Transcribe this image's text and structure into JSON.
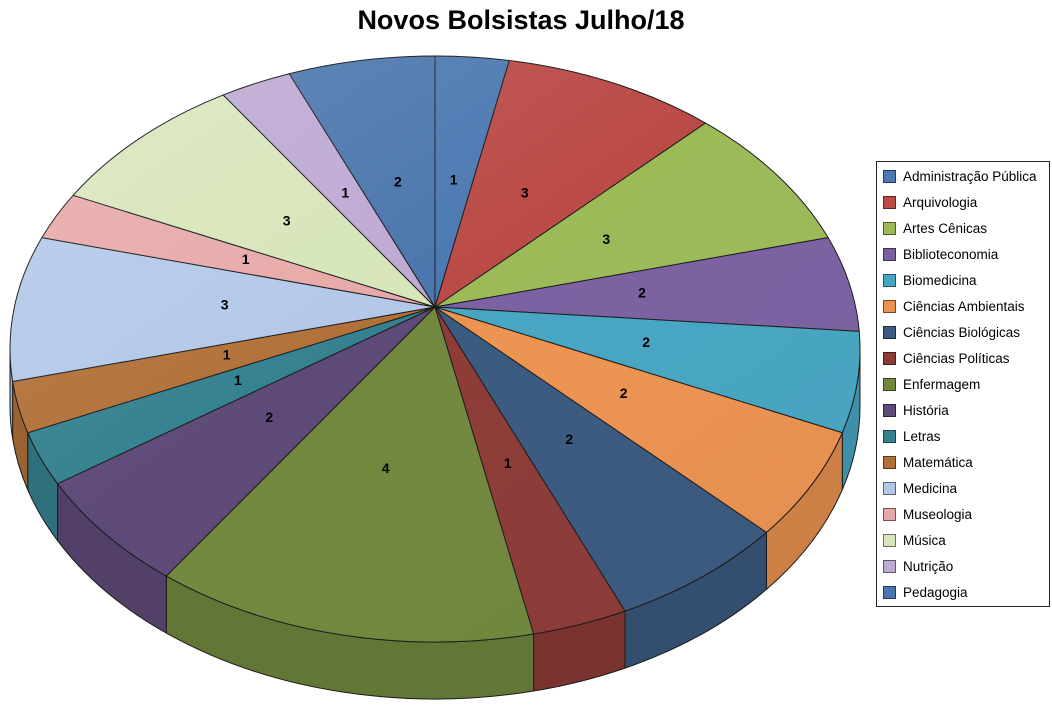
{
  "title": "Novos Bolsistas Julho/18",
  "chart_data": {
    "type": "pie",
    "style": "3d",
    "title": "Novos Bolsistas Julho/18",
    "legend_position": "right",
    "data_labels": "values",
    "direction": "clockwise",
    "start_angle_deg": 0,
    "total": 34,
    "categories": [
      "Administração Pública",
      "Arquivologia",
      "Artes Cênicas",
      "Biblioteconomia",
      "Biomedicina",
      "Ciências Ambientais",
      "Ciências Biológicas",
      "Ciências Políticas",
      "Enfermagem",
      "História",
      "Letras",
      "Matemática",
      "Medicina",
      "Museologia",
      "Música",
      "Nutrição",
      "Pedagogia"
    ],
    "values": [
      1,
      3,
      3,
      2,
      2,
      2,
      2,
      1,
      4,
      2,
      1,
      1,
      3,
      1,
      3,
      1,
      2
    ],
    "colors": [
      "#4C79B2",
      "#BB4B47",
      "#9CBA58",
      "#7C61A2",
      "#47A6C2",
      "#EC9351",
      "#3B5A80",
      "#8D3B37",
      "#71883D",
      "#5E4A78",
      "#35818F",
      "#B17038",
      "#B3C8E9",
      "#E7A9A8",
      "#D7E5BA",
      "#BEA9D3",
      "#4B76AD"
    ],
    "background": "#FFFFFF",
    "legend_border_color": "#262626",
    "label_color": "#000000"
  }
}
